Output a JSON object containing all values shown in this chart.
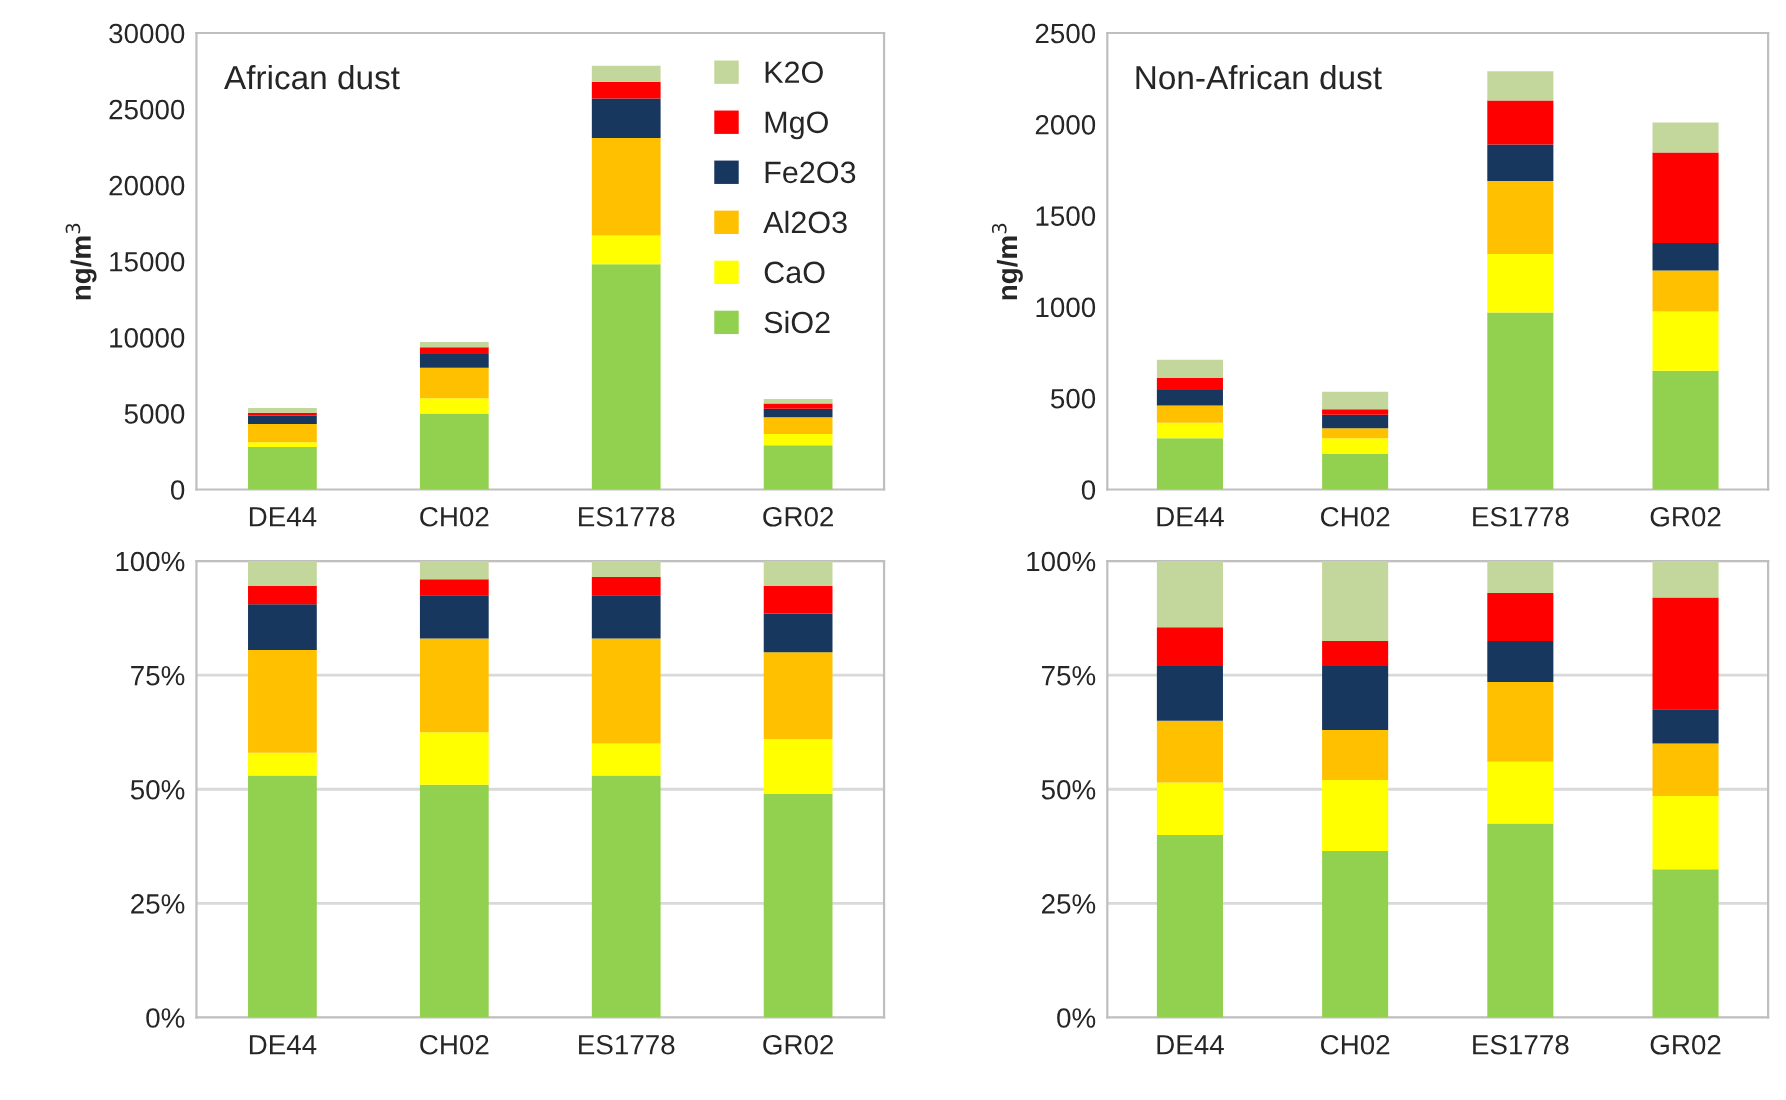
{
  "chart_data": [
    {
      "type": "bar",
      "title": "African dust",
      "ylabel": "ng/m$^{3}$",
      "stacked": true,
      "categories": [
        "DE44",
        "CH02",
        "ES1778",
        "GR02"
      ],
      "ylim": [
        0,
        30000
      ],
      "yticks": [
        0,
        5000,
        10000,
        15000,
        20000,
        25000,
        30000
      ],
      "grid": false,
      "legend": "top right",
      "series": [
        {
          "name": "SiO2",
          "color": "#92d050",
          "values": [
            2800,
            5000,
            14800,
            2900
          ]
        },
        {
          "name": "CaO",
          "color": "#ffff00",
          "values": [
            300,
            1000,
            1900,
            750
          ]
        },
        {
          "name": "Al2O3",
          "color": "#ffc000",
          "values": [
            1200,
            2000,
            6400,
            1100
          ]
        },
        {
          "name": "Fe2O3",
          "color": "#17375e",
          "values": [
            550,
            900,
            2600,
            550
          ]
        },
        {
          "name": "MgO",
          "color": "#ff0000",
          "values": [
            200,
            450,
            1100,
            350
          ]
        },
        {
          "name": "K2O",
          "color": "#c3d69b",
          "values": [
            300,
            350,
            1050,
            300
          ]
        }
      ]
    },
    {
      "type": "bar",
      "title": "Non-African dust",
      "ylabel": "ng/m$^{3}$",
      "stacked": true,
      "categories": [
        "DE44",
        "CH02",
        "ES1778",
        "GR02"
      ],
      "ylim": [
        0,
        2500
      ],
      "yticks": [
        0,
        500,
        1000,
        1500,
        2000,
        2500
      ],
      "grid": false,
      "series": [
        {
          "color": "#92d050",
          "values": [
            280,
            195,
            970,
            650
          ]
        },
        {
          "color": "#ffff00",
          "values": [
            85,
            85,
            320,
            325
          ]
        },
        {
          "color": "#ffc000",
          "values": [
            95,
            55,
            400,
            225
          ]
        },
        {
          "color": "#17375e",
          "values": [
            85,
            75,
            200,
            150
          ]
        },
        {
          "color": "#ff0000",
          "values": [
            65,
            30,
            240,
            495
          ]
        },
        {
          "color": "#c3d69b",
          "values": [
            100,
            95,
            160,
            165
          ]
        }
      ]
    },
    {
      "type": "bar",
      "stacked": true,
      "categories": [
        "DE44",
        "CH02",
        "ES1778",
        "GR02"
      ],
      "ylim": [
        0,
        100
      ],
      "yticks": [
        {
          "value": 0,
          "label": "0%"
        },
        {
          "value": 25,
          "label": "25%"
        },
        {
          "value": 50,
          "label": "50%"
        },
        {
          "value": 75,
          "label": "75%"
        },
        {
          "value": 100,
          "label": "100%"
        }
      ],
      "grid": "y",
      "series": [
        {
          "color": "#92d050",
          "values": [
            53,
            51,
            53,
            49
          ]
        },
        {
          "color": "#ffff00",
          "values": [
            5,
            11.5,
            7,
            12
          ]
        },
        {
          "color": "#ffc000",
          "values": [
            22.5,
            20.5,
            23,
            19
          ]
        },
        {
          "color": "#17375e",
          "values": [
            10,
            9.5,
            9.5,
            8.5
          ]
        },
        {
          "color": "#ff0000",
          "values": [
            4,
            3.5,
            4,
            6
          ]
        },
        {
          "color": "#c3d69b",
          "values": [
            5.5,
            4,
            3.5,
            5.5
          ]
        }
      ]
    },
    {
      "type": "bar",
      "stacked": true,
      "categories": [
        "DE44",
        "CH02",
        "ES1778",
        "GR02"
      ],
      "ylim": [
        0,
        100
      ],
      "yticks": [
        {
          "value": 0,
          "label": "0%"
        },
        {
          "value": 25,
          "label": "25%"
        },
        {
          "value": 50,
          "label": "50%"
        },
        {
          "value": 75,
          "label": "75%"
        },
        {
          "value": 100,
          "label": "100%"
        }
      ],
      "grid": "y",
      "series": [
        {
          "color": "#92d050",
          "values": [
            40,
            36.5,
            42.5,
            32.5
          ]
        },
        {
          "color": "#ffff00",
          "values": [
            11.5,
            15.5,
            13.5,
            16
          ]
        },
        {
          "color": "#ffc000",
          "values": [
            13.5,
            11,
            17.5,
            11.5
          ]
        },
        {
          "color": "#17375e",
          "values": [
            12,
            14,
            9,
            7.5
          ]
        },
        {
          "color": "#ff0000",
          "values": [
            8.5,
            5.5,
            10.5,
            24.5
          ]
        },
        {
          "color": "#c3d69b",
          "values": [
            14.5,
            17.5,
            7,
            8
          ]
        }
      ]
    }
  ]
}
